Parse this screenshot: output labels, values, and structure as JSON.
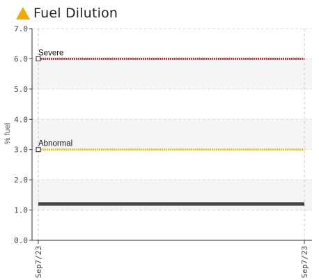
{
  "header": {
    "title": "Fuel Dilution",
    "icon": "warning-triangle-icon",
    "icon_color": "#f5a800"
  },
  "chart_data": {
    "type": "line",
    "title": "Fuel Dilution",
    "ylabel": "% fuel",
    "xlabel": "",
    "ylim": [
      0,
      7
    ],
    "y_ticks": [
      "0.0",
      "1.0",
      "2.0",
      "3.0",
      "4.0",
      "5.0",
      "6.0",
      "7.0"
    ],
    "x_ticks": [
      "Sep7/23",
      "Sep7/23"
    ],
    "grid": true,
    "thresholds": [
      {
        "label": "Severe",
        "value": 6.0,
        "color": "#e8202a"
      },
      {
        "label": "Abnormal",
        "value": 3.0,
        "color": "#f5c400"
      }
    ],
    "series": [
      {
        "x": [
          "Sep7/23",
          "Sep7/23"
        ],
        "values": [
          1.2,
          1.2
        ],
        "color": "#444444"
      }
    ]
  }
}
